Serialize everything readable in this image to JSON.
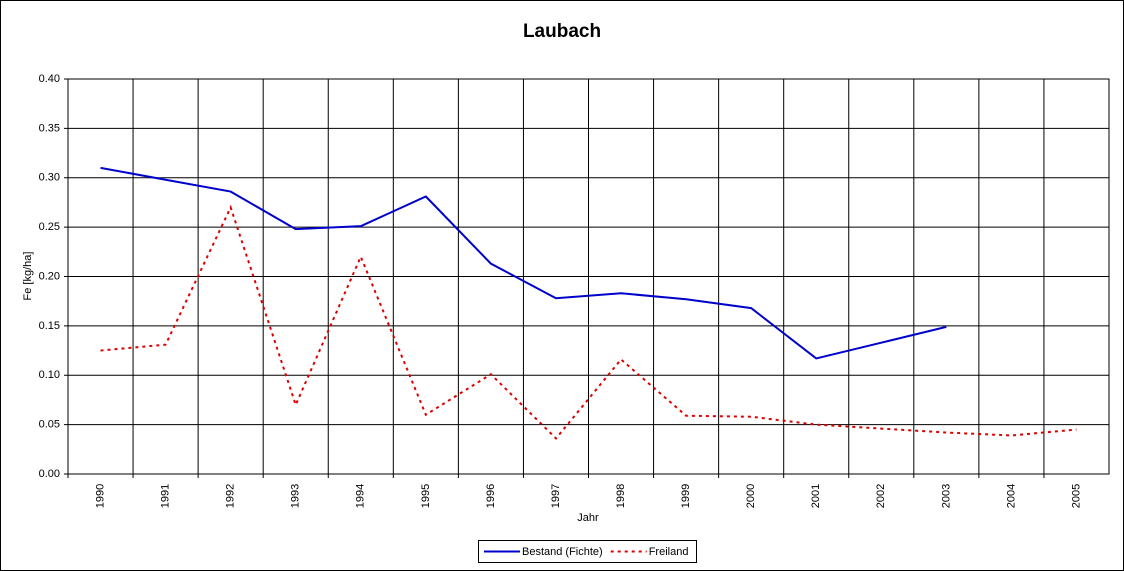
{
  "chart_data": {
    "type": "line",
    "title": "Laubach",
    "x_label": "Jahr",
    "y_label": "Fe [kg/ha]",
    "categories": [
      "1990",
      "1991",
      "1992",
      "1993",
      "1994",
      "1995",
      "1996",
      "1997",
      "1998",
      "1999",
      "2000",
      "2001",
      "2002",
      "2003",
      "2004",
      "2005"
    ],
    "series": [
      {
        "name": "Bestand (Fichte)",
        "color": "#0000cc",
        "dash": "solid",
        "values": [
          0.31,
          0.298,
          0.286,
          0.248,
          0.251,
          0.281,
          0.213,
          0.178,
          0.183,
          0.177,
          0.168,
          0.117,
          0.133,
          0.149,
          null,
          null
        ]
      },
      {
        "name": "Freiland",
        "color": "#dd0000",
        "dash": "dotted",
        "values": [
          0.125,
          0.131,
          0.27,
          0.07,
          0.22,
          0.06,
          0.101,
          0.036,
          0.116,
          0.059,
          0.058,
          0.05,
          0.046,
          0.042,
          0.039,
          0.045
        ]
      }
    ],
    "ylim": [
      0,
      0.4
    ],
    "yticks": [
      {
        "value": 0,
        "label": "0.00"
      },
      0.05,
      {
        "value": 0.1,
        "label": "0.10"
      },
      0.15,
      {
        "value": 0.2,
        "label": "0.20"
      },
      0.25,
      {
        "value": 0.3,
        "label": "0.30"
      },
      0.35,
      {
        "value": 0.4,
        "label": "0.40"
      }
    ],
    "grid": true,
    "legend": "bottom"
  }
}
